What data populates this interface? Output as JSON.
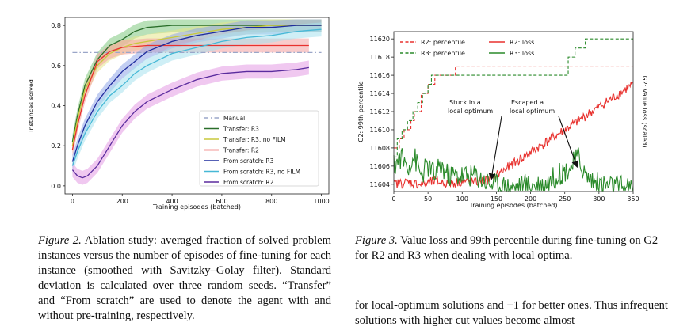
{
  "figure2": {
    "chart_data": {
      "type": "line",
      "xlabel": "Training episodes (batched)",
      "ylabel": "Instances solved",
      "xlim": [
        -30,
        1030
      ],
      "ylim": [
        -0.04,
        0.84
      ],
      "xticks": [
        "0",
        "200",
        "400",
        "600",
        "800",
        "1000"
      ],
      "yticks": [
        "0.0",
        "0.2",
        "0.4",
        "0.6",
        "0.8"
      ],
      "legend_position": "lower-right",
      "series": [
        {
          "name": "Manual",
          "color": "#9aa6c8",
          "dash": "dashdot",
          "x": [
            0,
            1000
          ],
          "y": [
            0.665,
            0.665
          ]
        },
        {
          "name": "Transfer: R3",
          "color": "#2a6e2a",
          "band": "#7fc97f",
          "x": [
            0,
            20,
            50,
            100,
            150,
            200,
            250,
            300,
            400,
            500,
            600,
            700,
            800,
            900,
            1000
          ],
          "y": [
            0.22,
            0.35,
            0.5,
            0.63,
            0.7,
            0.73,
            0.77,
            0.79,
            0.8,
            0.8,
            0.8,
            0.8,
            0.8,
            0.8,
            0.8
          ]
        },
        {
          "name": "Transfer: R3, no FILM",
          "color": "#c8c83c",
          "band": "#e6e68a",
          "x": [
            0,
            20,
            50,
            100,
            150,
            200,
            250,
            300,
            400,
            500,
            600,
            700,
            800,
            900,
            1000
          ],
          "y": [
            0.2,
            0.33,
            0.48,
            0.6,
            0.66,
            0.69,
            0.71,
            0.72,
            0.74,
            0.76,
            0.78,
            0.79,
            0.8,
            0.8,
            0.8
          ]
        },
        {
          "name": "Transfer: R2",
          "color": "#e8312e",
          "band": "#f4a0a0",
          "x": [
            0,
            20,
            50,
            100,
            150,
            200,
            300,
            400,
            500,
            600,
            700,
            800,
            900,
            950
          ],
          "y": [
            0.18,
            0.3,
            0.45,
            0.62,
            0.67,
            0.69,
            0.7,
            0.7,
            0.7,
            0.7,
            0.7,
            0.7,
            0.7,
            0.7
          ]
        },
        {
          "name": "From scratch: R3",
          "color": "#1f2d9e",
          "band": "#8fa6e8",
          "x": [
            0,
            20,
            50,
            100,
            150,
            200,
            250,
            300,
            400,
            500,
            600,
            700,
            800,
            900,
            1000
          ],
          "y": [
            0.12,
            0.2,
            0.3,
            0.42,
            0.5,
            0.57,
            0.62,
            0.67,
            0.72,
            0.75,
            0.77,
            0.79,
            0.79,
            0.8,
            0.8
          ]
        },
        {
          "name": "From scratch: R3, no FILM",
          "color": "#46b8d6",
          "band": "#a8e2ef",
          "x": [
            0,
            20,
            50,
            100,
            150,
            200,
            250,
            300,
            400,
            500,
            600,
            700,
            800,
            900,
            1000
          ],
          "y": [
            0.1,
            0.17,
            0.26,
            0.37,
            0.45,
            0.5,
            0.56,
            0.6,
            0.66,
            0.69,
            0.72,
            0.74,
            0.75,
            0.77,
            0.78
          ]
        },
        {
          "name": "From scratch: R2",
          "color": "#5b2c9e",
          "band": "#e39ae3",
          "x": [
            0,
            20,
            40,
            60,
            100,
            150,
            200,
            250,
            300,
            400,
            500,
            600,
            700,
            800,
            900,
            950
          ],
          "y": [
            0.08,
            0.05,
            0.04,
            0.05,
            0.1,
            0.2,
            0.3,
            0.37,
            0.42,
            0.48,
            0.53,
            0.56,
            0.57,
            0.57,
            0.58,
            0.59
          ]
        }
      ]
    }
  },
  "figure3": {
    "chart_data": {
      "type": "line",
      "xlabel": "Training episodes (batched)",
      "ylabel_left": "G2: 99th percentile",
      "ylabel_right": "G2: Value loss (scaled)",
      "xlim": [
        0,
        350
      ],
      "ylim": [
        11603.2,
        11620.8
      ],
      "xticks": [
        "0",
        "50",
        "100",
        "150",
        "200",
        "250",
        "300",
        "350"
      ],
      "yticks": [
        "11604",
        "11606",
        "11608",
        "11610",
        "11612",
        "11614",
        "11616",
        "11618",
        "11620"
      ],
      "legend_position": "top",
      "series": [
        {
          "name": "R2: percentile",
          "color": "#e8312e",
          "dash": "dashed",
          "x": [
            0,
            8,
            15,
            25,
            30,
            40,
            50,
            60,
            70,
            80,
            90,
            100,
            110,
            120,
            250,
            350
          ],
          "y": [
            11608,
            11609,
            11610,
            11611,
            11612,
            11614,
            11615,
            11616,
            11616,
            11616,
            11617,
            11617,
            11617,
            11617,
            11617,
            11617
          ]
        },
        {
          "name": "R3: percentile",
          "color": "#2a8a2a",
          "dash": "dashed",
          "x": [
            0,
            5,
            12,
            20,
            28,
            35,
            42,
            50,
            55,
            65,
            75,
            90,
            110,
            150,
            200,
            250,
            255,
            265,
            275,
            280,
            350
          ],
          "y": [
            11607,
            11609,
            11610,
            11611,
            11612,
            11613,
            11614,
            11615,
            11616,
            11616,
            11616,
            11616,
            11616,
            11616,
            11616,
            11616,
            11618,
            11619,
            11619,
            11620,
            11620
          ]
        },
        {
          "name": "R2: loss",
          "color": "#e8312e",
          "x": [
            0,
            20,
            40,
            60,
            80,
            100,
            120,
            140,
            160,
            180,
            200,
            220,
            240,
            260,
            280,
            300,
            320,
            340,
            350
          ],
          "y": [
            11604.0,
            11604.2,
            11604.0,
            11604.3,
            11604.1,
            11604.3,
            11604.2,
            11604.5,
            11605.5,
            11606.5,
            11607.5,
            11608.5,
            11609.5,
            11610.5,
            11611.5,
            11612.5,
            11613.5,
            11614.5,
            11615
          ]
        },
        {
          "name": "R3: loss",
          "color": "#2a8a2a",
          "x": [
            0,
            10,
            20,
            30,
            40,
            50,
            60,
            70,
            80,
            90,
            100,
            110,
            120,
            130,
            140,
            150,
            160,
            180,
            200,
            220,
            240,
            260,
            270,
            280,
            300,
            320,
            350
          ],
          "y": [
            11606,
            11607,
            11606,
            11607,
            11605,
            11606,
            11605,
            11606,
            11605,
            11605,
            11605,
            11605,
            11605,
            11604.5,
            11604.2,
            11604,
            11603.8,
            11603.7,
            11604,
            11604,
            11605,
            11606,
            11607,
            11605,
            11604,
            11603.8,
            11603.5
          ]
        }
      ],
      "annotations": [
        {
          "text_lines": [
            "Stuck in a",
            "local optimum"
          ]
        },
        {
          "text_lines": [
            "Escaped a",
            "local optimum"
          ]
        }
      ]
    }
  },
  "captions": {
    "fig2_label": "Figure 2.",
    "fig2_text": "Ablation study: averaged fraction of solved problem instances versus the number of episodes of fine-tuning for each instance (smoothed with Savitzky–Golay filter). Standard deviation is calculated over three random seeds. “Transfer” and “From scratch” are used to denote the agent with and without pre-training, respectively.",
    "fig3_label": "Figure 3.",
    "fig3_text": "Value loss and 99th percentile during fine-tuning on G2 for R2 and R3 when dealing with local optima.",
    "body_text": "for local-optimum solutions and +1 for better ones. Thus infrequent solutions with higher cut values become almost"
  }
}
